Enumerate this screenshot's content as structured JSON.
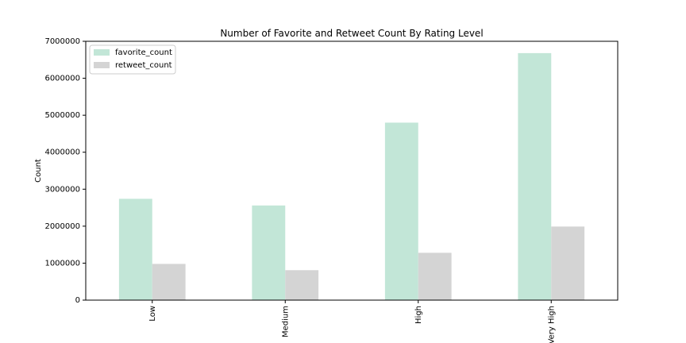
{
  "chart_data": {
    "type": "bar",
    "title": "Number of Favorite and Retweet Count By Rating Level",
    "xlabel": "",
    "ylabel": "Count",
    "categories": [
      "Low",
      "Medium",
      "High",
      "Very High"
    ],
    "series": [
      {
        "name": "favorite_count",
        "color": "#c2e6d7",
        "values": [
          2740000,
          2560000,
          4800000,
          6680000
        ]
      },
      {
        "name": "retweet_count",
        "color": "#d4d4d4",
        "values": [
          980000,
          810000,
          1280000,
          1990000
        ]
      }
    ],
    "ylim": [
      0,
      7000000
    ],
    "yticks": [
      "0",
      "1000000",
      "2000000",
      "3000000",
      "4000000",
      "5000000",
      "6000000",
      "7000000"
    ],
    "grid": false,
    "legend_position": "top-left",
    "x_tick_rotation": "vertical"
  }
}
